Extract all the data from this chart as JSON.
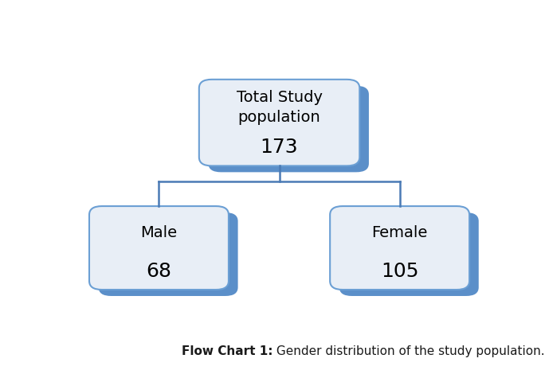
{
  "title_box_label": "Total Study\npopulation",
  "title_box_value": "173",
  "left_box_label": "Male",
  "left_box_value": "68",
  "right_box_label": "Female",
  "right_box_value": "105",
  "shadow_color": "#5b8fc9",
  "box_face_color": "#e8eef6",
  "box_edge_color": "#6b9fd4",
  "line_color": "#4a7ab5",
  "text_color": "#000000",
  "caption_bold": "Flow Chart 1:",
  "caption_normal": " Gender distribution of the study population.",
  "caption_color": "#1a1a1a",
  "bg_color": "#ffffff",
  "label_fontsize": 14,
  "value_fontsize": 18,
  "caption_fontsize": 11
}
